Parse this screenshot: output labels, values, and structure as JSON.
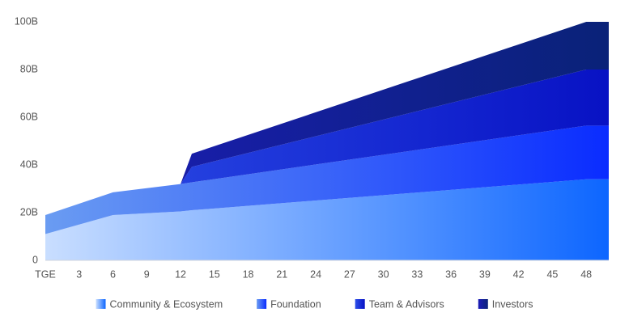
{
  "chart_data": {
    "type": "stacked-area",
    "x": [
      0,
      6,
      12,
      13,
      48,
      50
    ],
    "xlim": [
      0,
      50
    ],
    "xticks": [
      {
        "value": 0,
        "label": "TGE"
      },
      3,
      6,
      9,
      12,
      15,
      18,
      21,
      24,
      27,
      30,
      33,
      36,
      39,
      42,
      45,
      48
    ],
    "ylim": [
      0,
      100
    ],
    "yticks": [
      0,
      {
        "value": 20,
        "label": "20B"
      },
      {
        "value": 40,
        "label": "40B"
      },
      {
        "value": 60,
        "label": "60B"
      },
      {
        "value": 80,
        "label": "80B"
      },
      {
        "value": 100,
        "label": "100B"
      }
    ],
    "series": [
      {
        "name": "Community & Ecosystem",
        "gradient_from": "#c9deff",
        "color": "#0d66ff",
        "values": [
          11,
          19,
          20.5,
          21,
          34,
          34
        ]
      },
      {
        "name": "Foundation",
        "gradient_from": "#6a9cf2",
        "color": "#0a2cff",
        "values": [
          8,
          9.5,
          11.5,
          11.7,
          22.5,
          22.5
        ]
      },
      {
        "name": "Team & Advisors",
        "gradient_from": "#2d4fe8",
        "color": "#0812c4",
        "values": [
          0,
          0,
          0,
          6.5,
          23.5,
          23.5
        ]
      },
      {
        "name": "Investors",
        "gradient_from": "#1c1cb8",
        "color": "#0a2278",
        "values": [
          0,
          0,
          0,
          5.5,
          20,
          20
        ]
      }
    ],
    "legend": "bottom"
  }
}
